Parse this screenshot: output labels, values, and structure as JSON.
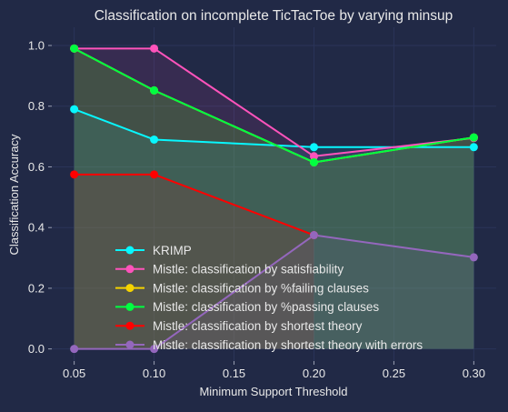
{
  "chart_data": {
    "type": "line",
    "title": "Classification on incomplete TicTacToe by varying minsup",
    "xlabel": "Minimum Support Threshold",
    "ylabel": "Classification Accuracy",
    "x": [
      0.05,
      0.1,
      0.2,
      0.3
    ],
    "xlim": [
      0.036,
      0.314
    ],
    "ylim": [
      -0.04,
      1.06
    ],
    "xticks": [
      "0.05",
      "0.10",
      "0.15",
      "0.20",
      "0.25",
      "0.30"
    ],
    "xtick_values": [
      0.05,
      0.1,
      0.15,
      0.2,
      0.25,
      0.3
    ],
    "yticks": [
      "0.0",
      "0.2",
      "0.4",
      "0.6",
      "0.8",
      "1.0"
    ],
    "ytick_values": [
      0.0,
      0.2,
      0.4,
      0.6,
      0.8,
      1.0
    ],
    "grid": true,
    "legend_position": "lower-center",
    "series": [
      {
        "name": "KRIMP",
        "color": "#08F7FE",
        "values": [
          0.79,
          0.69,
          0.665,
          0.665
        ]
      },
      {
        "name": "Mistle: classification by satisfiability",
        "color": "#FE53BB",
        "values": [
          0.99,
          0.99,
          0.635,
          0.695
        ]
      },
      {
        "name": "Mistle: classification by %failing clauses",
        "color": "#F5D300",
        "values": [
          0.99,
          0.852,
          0.615,
          0.697
        ]
      },
      {
        "name": "Mistle: classification by %passing clauses",
        "color": "#00FF41",
        "values": [
          0.99,
          0.852,
          0.615,
          0.697
        ]
      },
      {
        "name": "Mistle: classification by shortest theory",
        "color": "#FF0000",
        "values": [
          0.575,
          0.575,
          0.375,
          null
        ]
      },
      {
        "name": "Mistle: classification by shortest theory with errors",
        "color": "#9467BD",
        "values": [
          0.0,
          0.0,
          0.375,
          0.302
        ]
      }
    ]
  }
}
